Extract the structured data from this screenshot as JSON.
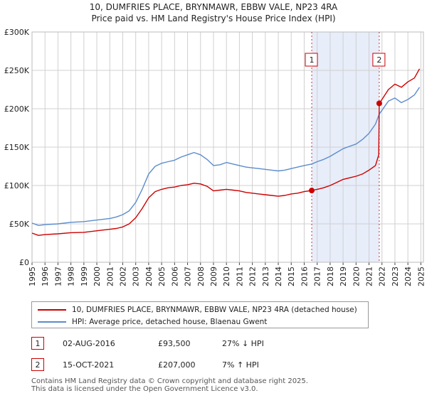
{
  "chart_data": {
    "type": "line",
    "title": "10, DUMFRIES PLACE, BRYNMAWR, EBBW VALE, NP23 4RA",
    "subtitle": "Price paid vs. HM Land Registry's House Price Index (HPI)",
    "xlim": [
      1995.0,
      2025.2
    ],
    "ylim": [
      0,
      300000
    ],
    "x_ticks": [
      "1995",
      "1996",
      "1997",
      "1998",
      "1999",
      "2000",
      "2001",
      "2002",
      "2003",
      "2004",
      "2005",
      "2006",
      "2007",
      "2008",
      "2009",
      "2010",
      "2011",
      "2012",
      "2013",
      "2014",
      "2015",
      "2016",
      "2017",
      "2018",
      "2019",
      "2020",
      "2021",
      "2022",
      "2023",
      "2024",
      "2025"
    ],
    "y_ticks": [
      {
        "value": 0,
        "label": "£0"
      },
      {
        "value": 50000,
        "label": "£50K"
      },
      {
        "value": 100000,
        "label": "£100K"
      },
      {
        "value": 150000,
        "label": "£150K"
      },
      {
        "value": 200000,
        "label": "£200K"
      },
      {
        "value": 250000,
        "label": "£250K"
      },
      {
        "value": 300000,
        "label": "£300K"
      }
    ],
    "grid": true,
    "shaded_region": [
      2016.58,
      2021.79
    ],
    "series": [
      {
        "name": "10, DUMFRIES PLACE, BRYNMAWR, EBBW VALE, NP23 4RA (detached house)",
        "color": "#cc0000",
        "points": [
          [
            1995.0,
            38000
          ],
          [
            1995.5,
            35000
          ],
          [
            1996.0,
            36000
          ],
          [
            1997.0,
            37000
          ],
          [
            1998.0,
            38500
          ],
          [
            1999.0,
            39000
          ],
          [
            2000.0,
            41000
          ],
          [
            2001.0,
            43000
          ],
          [
            2001.5,
            44000
          ],
          [
            2002.0,
            46000
          ],
          [
            2002.5,
            50000
          ],
          [
            2003.0,
            58000
          ],
          [
            2003.5,
            70000
          ],
          [
            2004.0,
            84000
          ],
          [
            2004.5,
            92000
          ],
          [
            2005.0,
            95000
          ],
          [
            2005.5,
            97000
          ],
          [
            2006.0,
            98000
          ],
          [
            2006.5,
            100000
          ],
          [
            2007.0,
            101000
          ],
          [
            2007.5,
            103000
          ],
          [
            2008.0,
            102000
          ],
          [
            2008.5,
            99000
          ],
          [
            2009.0,
            93000
          ],
          [
            2009.5,
            94000
          ],
          [
            2010.0,
            95000
          ],
          [
            2010.5,
            94000
          ],
          [
            2011.0,
            93000
          ],
          [
            2011.5,
            91000
          ],
          [
            2012.0,
            90000
          ],
          [
            2012.5,
            89000
          ],
          [
            2013.0,
            88000
          ],
          [
            2013.5,
            87000
          ],
          [
            2014.0,
            86000
          ],
          [
            2014.5,
            87000
          ],
          [
            2015.0,
            89000
          ],
          [
            2015.5,
            90000
          ],
          [
            2016.0,
            92000
          ],
          [
            2016.58,
            93500
          ],
          [
            2017.0,
            95000
          ],
          [
            2017.5,
            97000
          ],
          [
            2018.0,
            100000
          ],
          [
            2018.5,
            104000
          ],
          [
            2019.0,
            108000
          ],
          [
            2019.5,
            110000
          ],
          [
            2020.0,
            112000
          ],
          [
            2020.5,
            115000
          ],
          [
            2021.0,
            120000
          ],
          [
            2021.5,
            126000
          ],
          [
            2021.75,
            140000
          ],
          [
            2021.79,
            207000
          ],
          [
            2022.0,
            212000
          ],
          [
            2022.5,
            225000
          ],
          [
            2023.0,
            232000
          ],
          [
            2023.5,
            228000
          ],
          [
            2024.0,
            235000
          ],
          [
            2024.5,
            240000
          ],
          [
            2024.9,
            252000
          ]
        ]
      },
      {
        "name": "HPI: Average price, detached house, Blaenau Gwent",
        "color": "#5b8ccc",
        "points": [
          [
            1995.0,
            51000
          ],
          [
            1995.5,
            48000
          ],
          [
            1996.0,
            49000
          ],
          [
            1997.0,
            50000
          ],
          [
            1998.0,
            52000
          ],
          [
            1999.0,
            53000
          ],
          [
            2000.0,
            55000
          ],
          [
            2001.0,
            57000
          ],
          [
            2001.5,
            59000
          ],
          [
            2002.0,
            62000
          ],
          [
            2002.5,
            67000
          ],
          [
            2003.0,
            78000
          ],
          [
            2003.5,
            95000
          ],
          [
            2004.0,
            115000
          ],
          [
            2004.5,
            125000
          ],
          [
            2005.0,
            129000
          ],
          [
            2005.5,
            131000
          ],
          [
            2006.0,
            133000
          ],
          [
            2006.5,
            137000
          ],
          [
            2007.0,
            140000
          ],
          [
            2007.5,
            143000
          ],
          [
            2008.0,
            140000
          ],
          [
            2008.5,
            134000
          ],
          [
            2009.0,
            126000
          ],
          [
            2009.5,
            127000
          ],
          [
            2010.0,
            130000
          ],
          [
            2010.5,
            128000
          ],
          [
            2011.0,
            126000
          ],
          [
            2011.5,
            124000
          ],
          [
            2012.0,
            123000
          ],
          [
            2012.5,
            122000
          ],
          [
            2013.0,
            121000
          ],
          [
            2013.5,
            120000
          ],
          [
            2014.0,
            119000
          ],
          [
            2014.5,
            120000
          ],
          [
            2015.0,
            122000
          ],
          [
            2015.5,
            124000
          ],
          [
            2016.0,
            126000
          ],
          [
            2016.58,
            128000
          ],
          [
            2017.0,
            131000
          ],
          [
            2017.5,
            134000
          ],
          [
            2018.0,
            138000
          ],
          [
            2018.5,
            143000
          ],
          [
            2019.0,
            148000
          ],
          [
            2019.5,
            151000
          ],
          [
            2020.0,
            154000
          ],
          [
            2020.5,
            160000
          ],
          [
            2021.0,
            168000
          ],
          [
            2021.5,
            180000
          ],
          [
            2021.79,
            193000
          ],
          [
            2022.0,
            198000
          ],
          [
            2022.5,
            210000
          ],
          [
            2023.0,
            214000
          ],
          [
            2023.5,
            208000
          ],
          [
            2024.0,
            212000
          ],
          [
            2024.5,
            218000
          ],
          [
            2024.9,
            228000
          ]
        ]
      }
    ],
    "annotations": [
      {
        "label": "1",
        "x": 2016.58
      },
      {
        "label": "2",
        "x": 2021.79
      }
    ],
    "sales": [
      {
        "x": 2016.58,
        "y": 93500
      },
      {
        "x": 2021.79,
        "y": 207000
      }
    ]
  },
  "legend": {
    "property_label": "10, DUMFRIES PLACE, BRYNMAWR, EBBW VALE, NP23 4RA (detached house)",
    "hpi_label": "HPI: Average price, detached house, Blaenau Gwent"
  },
  "transactions": [
    {
      "num": "1",
      "date": "02-AUG-2016",
      "price": "£93,500",
      "hpi": "27% ↓ HPI"
    },
    {
      "num": "2",
      "date": "15-OCT-2021",
      "price": "£207,000",
      "hpi": "7% ↑ HPI"
    }
  ],
  "footer": {
    "line1": "Contains HM Land Registry data © Crown copyright and database right 2025.",
    "line2": "This data is licensed under the Open Government Licence v3.0."
  },
  "colors": {
    "property": "#cc0000",
    "hpi": "#5b8ccc",
    "shade": "#dde6f7",
    "grid": "#d0d0d0"
  }
}
